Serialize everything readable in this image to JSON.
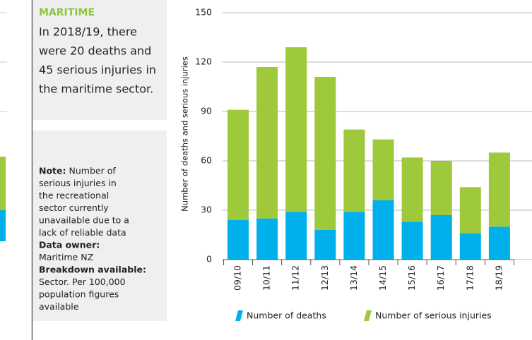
{
  "panel": {
    "heading": "MARITIME",
    "summary": [
      "In 2018/19, there",
      "were 20 deaths and",
      "45 serious injuries in",
      "the maritime sector."
    ],
    "note": {
      "label": "Note:",
      "lines": [
        "Number of",
        "serious injuries in",
        "the recreational",
        "sector currently",
        "unavailable due to a",
        "lack of reliable data"
      ]
    },
    "data_owner": {
      "label": "Data owner:",
      "lines": [
        "Maritime NZ"
      ]
    },
    "breakdown": {
      "label": "Breakdown available:",
      "lines": [
        "Sector. Per 100,000",
        "population figures",
        "available"
      ]
    }
  },
  "chart_data": {
    "type": "bar",
    "stacked": true,
    "y_label": "Number of deaths and serious injuries",
    "categories": [
      "09/10",
      "10/11",
      "11/12",
      "12/13",
      "13/14",
      "14/15",
      "15/16",
      "16/17",
      "17/18",
      "18/19"
    ],
    "series": [
      {
        "name": "Number of deaths",
        "color": "#00b0ea",
        "values": [
          24,
          25,
          29,
          18,
          29,
          36,
          23,
          27,
          16,
          20
        ]
      },
      {
        "name": "Number of serious injuries",
        "color": "#9dc93b",
        "values": [
          67,
          92,
          100,
          93,
          50,
          37,
          39,
          33,
          28,
          45
        ]
      }
    ],
    "ylim": [
      0,
      150
    ],
    "yticks": [
      0,
      30,
      60,
      90,
      120,
      150
    ],
    "grid": true
  }
}
